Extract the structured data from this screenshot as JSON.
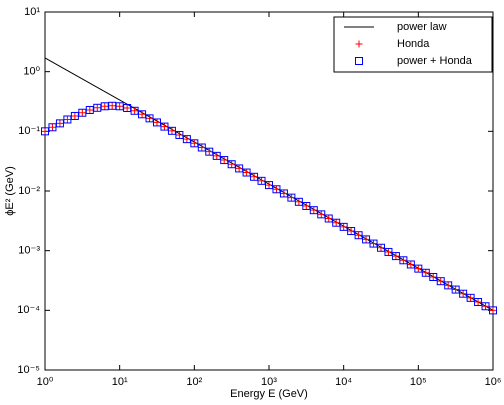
{
  "chart_data": {
    "type": "line",
    "x_label": "Energy E (GeV)",
    "y_label": "ϕE² (GeV)",
    "xscale": "log",
    "yscale": "log",
    "xlim": [
      1,
      1000000
    ],
    "ylim": [
      1e-05,
      10
    ],
    "xticks": [
      {
        "value": 1,
        "label": "10⁰"
      },
      {
        "value": 10,
        "label": "10¹"
      },
      {
        "value": 100,
        "label": "10²"
      },
      {
        "value": 1000,
        "label": "10³"
      },
      {
        "value": 10000,
        "label": "10⁴"
      },
      {
        "value": 100000,
        "label": "10⁵"
      },
      {
        "value": 1000000,
        "label": "10⁶"
      }
    ],
    "yticks": [
      {
        "value": 1e-05,
        "label": "10⁻⁵"
      },
      {
        "value": 0.0001,
        "label": "10⁻⁴"
      },
      {
        "value": 0.001,
        "label": "10⁻³"
      },
      {
        "value": 0.01,
        "label": "10⁻²"
      },
      {
        "value": 0.1,
        "label": "10⁻¹"
      },
      {
        "value": 1,
        "label": "10⁰"
      },
      {
        "value": 10,
        "label": "10¹"
      }
    ],
    "grid": false,
    "legend": "upper right",
    "series": [
      {
        "name": "power law",
        "color": "#000000",
        "marker": "line",
        "x": [
          1,
          1000000
        ],
        "values": [
          1.7,
          0.0001
        ]
      },
      {
        "name": "Honda",
        "color": "#ff0000",
        "marker": "plus",
        "x": [
          1,
          1.259,
          1.585,
          1.995,
          2.512,
          3.162,
          3.981,
          5.012,
          6.31,
          7.943,
          10,
          12.59,
          15.85,
          19.95,
          25.12,
          31.62,
          39.81,
          50.12,
          63.1,
          79.43,
          100,
          125.9,
          158.5,
          199.5,
          251.2,
          316.2,
          398.1,
          501.2,
          631,
          794.3,
          1000,
          1259,
          1585,
          1995,
          2512,
          3162,
          3981,
          5012,
          6310,
          7943,
          10000,
          12590,
          15850,
          19950,
          25120,
          31620,
          39810,
          50120,
          63100,
          79430,
          100000,
          125900,
          158500,
          199500,
          251200,
          316200,
          398100,
          501200,
          631000,
          794300,
          1000000
        ],
        "values": [
          0.1,
          0.117,
          0.136,
          0.158,
          0.181,
          0.205,
          0.228,
          0.248,
          0.263,
          0.268,
          0.263,
          0.246,
          0.221,
          0.193,
          0.165,
          0.141,
          0.12,
          0.102,
          0.0869,
          0.074,
          0.063,
          0.0536,
          0.0456,
          0.0388,
          0.033,
          0.0281,
          0.0239,
          0.0204,
          0.0173,
          0.0148,
          0.01256,
          0.01069,
          0.0091,
          0.00774,
          0.00659,
          0.00561,
          0.00477,
          0.00406,
          0.00346,
          0.00294,
          0.002506,
          0.002133,
          0.001815,
          0.001545,
          0.001315,
          0.001119,
          0.000952,
          0.000811,
          0.00069,
          0.000587,
          0.0005,
          0.000426,
          0.000362,
          0.000308,
          0.000262,
          0.000223,
          0.00019,
          0.000162,
          0.000138,
          0.000117,
          9.98e-05
        ]
      },
      {
        "name": "power + Honda",
        "color": "#0000ff",
        "marker": "square",
        "x": [
          1,
          1.259,
          1.585,
          1.995,
          2.512,
          3.162,
          3.981,
          5.012,
          6.31,
          7.943,
          10,
          12.59,
          15.85,
          19.95,
          25.12,
          31.62,
          39.81,
          50.12,
          63.1,
          79.43,
          100,
          125.9,
          158.5,
          199.5,
          251.2,
          316.2,
          398.1,
          501.2,
          631,
          794.3,
          1000,
          1259,
          1585,
          1995,
          2512,
          3162,
          3981,
          5012,
          6310,
          7943,
          10000,
          12590,
          15850,
          19950,
          25120,
          31620,
          39810,
          50120,
          63100,
          79430,
          100000,
          125900,
          158500,
          199500,
          251200,
          316200,
          398100,
          501200,
          631000,
          794300,
          1000000
        ],
        "values": [
          0.1,
          0.117,
          0.136,
          0.158,
          0.181,
          0.205,
          0.228,
          0.248,
          0.263,
          0.268,
          0.263,
          0.246,
          0.221,
          0.193,
          0.165,
          0.141,
          0.12,
          0.102,
          0.0869,
          0.074,
          0.063,
          0.0536,
          0.0456,
          0.0388,
          0.033,
          0.0281,
          0.0239,
          0.0204,
          0.0173,
          0.0148,
          0.01256,
          0.01069,
          0.0091,
          0.00774,
          0.00659,
          0.00561,
          0.00477,
          0.00406,
          0.00346,
          0.00294,
          0.002506,
          0.002133,
          0.001815,
          0.001545,
          0.001315,
          0.001119,
          0.000952,
          0.000811,
          0.00069,
          0.000587,
          0.0005,
          0.000426,
          0.000362,
          0.000308,
          0.000262,
          0.000223,
          0.00019,
          0.000162,
          0.000138,
          0.000117,
          9.98e-05
        ]
      }
    ]
  }
}
